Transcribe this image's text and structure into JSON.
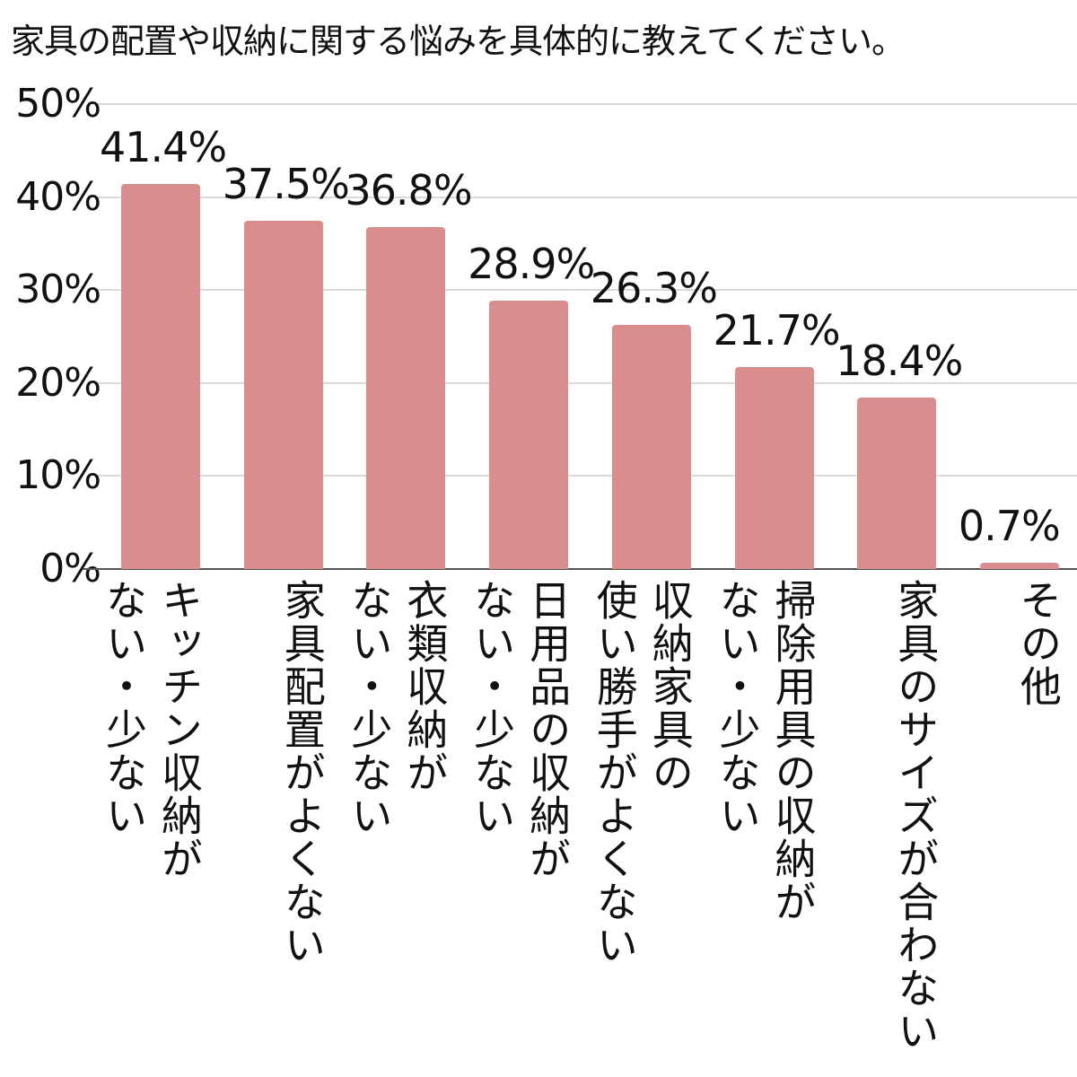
{
  "title": "家具の配置や収納に関する悩みを具体的に教えてください。",
  "chart_data": {
    "type": "bar",
    "title": "家具の配置や収納に関する悩みを具体的に教えてください。",
    "xlabel": "",
    "ylabel": "",
    "ylim": [
      0,
      50
    ],
    "yticks": [
      "0%",
      "10%",
      "20%",
      "30%",
      "40%",
      "50%"
    ],
    "grid": true,
    "legend": null,
    "bar_color": "#d98e8e",
    "categories": [
      "キッチン収納がない・少ない",
      "家具配置がよくない",
      "衣類収納がない・少ない",
      "日用品の収納がない・少ない",
      "収納家具の使い勝手がよくない",
      "掃除用具の収納がない・少ない",
      "家具のサイズが合わない",
      "その他"
    ],
    "values": [
      41.4,
      37.5,
      36.8,
      28.9,
      26.3,
      21.7,
      18.4,
      0.7
    ],
    "value_labels": [
      "41.4%",
      "37.5%",
      "36.8%",
      "28.9%",
      "26.3%",
      "21.7%",
      "18.4%",
      "0.7%"
    ],
    "category_label_lines": [
      [
        "キッチン収納が",
        "ない・少ない"
      ],
      [
        "家具配置がよくない"
      ],
      [
        "衣類収納が",
        "ない・少ない"
      ],
      [
        "日用品の収納が",
        "ない・少ない"
      ],
      [
        "収納家具の",
        "使い勝手がよくない"
      ],
      [
        "掃除用具の収納が",
        "ない・少ない"
      ],
      [
        "家具のサイズが合わない"
      ],
      [
        "その他"
      ]
    ]
  }
}
